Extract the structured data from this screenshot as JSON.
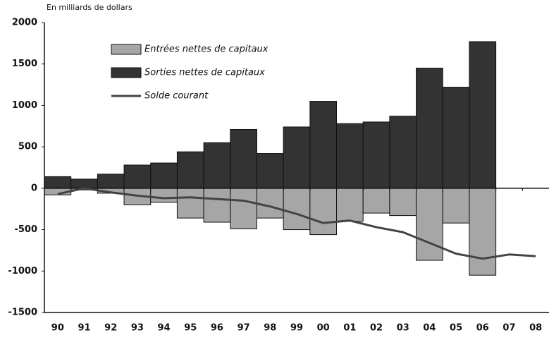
{
  "chart_data": {
    "type": "bar",
    "y_label": "En milliards de dollars",
    "categories": [
      "90",
      "91",
      "92",
      "93",
      "94",
      "95",
      "96",
      "97",
      "98",
      "99",
      "00",
      "01",
      "02",
      "03",
      "04",
      "05",
      "06",
      "07",
      "08"
    ],
    "series": [
      {
        "name": "Entrées nettes de capitaux",
        "color": "#a6a6a6",
        "values": [
          -80,
          -20,
          -60,
          -200,
          -170,
          -360,
          -410,
          -490,
          -360,
          -500,
          -560,
          -400,
          -300,
          -330,
          -870,
          -420,
          -1050,
          null,
          null
        ]
      },
      {
        "name": "Sorties nettes de capitaux",
        "color": "#333333",
        "values": [
          140,
          110,
          170,
          280,
          305,
          440,
          550,
          710,
          420,
          740,
          1050,
          780,
          800,
          870,
          1450,
          1220,
          1770,
          null,
          null
        ]
      },
      {
        "name": "Solde courant",
        "type": "line",
        "color": "#444444",
        "values": [
          -70,
          0,
          -50,
          -90,
          -120,
          -110,
          -130,
          -150,
          -220,
          -310,
          -420,
          -390,
          -470,
          -530,
          -660,
          -790,
          -850,
          -800,
          -820
        ]
      }
    ],
    "ylim": [
      -1500,
      2000
    ],
    "yticks": [
      -1500,
      -1000,
      -500,
      0,
      500,
      1000,
      1500,
      2000
    ]
  }
}
